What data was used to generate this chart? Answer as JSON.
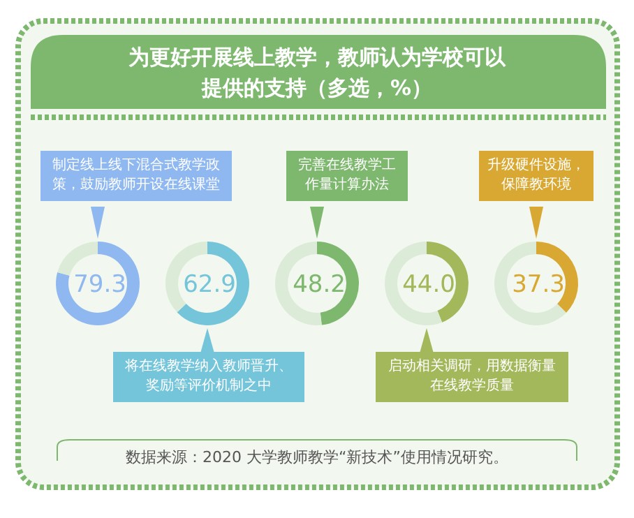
{
  "chart_data": [
    {
      "type": "other",
      "title": "为更好开展线上教学，教师认为学校可以提供的支持（多选，%）",
      "annotations": [
        "数据来源：2020 大学教师教学“新技术”使用情况研究。"
      ]
    },
    {
      "type": "donut",
      "categories": [
        "制定线上线下混合式教学政策，鼓励教师开设在线课堂",
        null
      ],
      "values": [
        79.3,
        20.7
      ],
      "colors": [
        "#8fb8f0",
        "#dcebd8"
      ],
      "value_labels": [
        "79.3",
        null
      ]
    },
    {
      "type": "donut",
      "categories": [
        "将在线教学纳入教师晋升、奖励等评价机制之中",
        null
      ],
      "values": [
        62.9,
        37.1
      ],
      "colors": [
        "#74c5da",
        "#dcebd8"
      ],
      "value_labels": [
        "62.9",
        null
      ]
    },
    {
      "type": "donut",
      "categories": [
        "完善在线教学工作量计算办法",
        null
      ],
      "values": [
        48.2,
        51.8
      ],
      "colors": [
        "#7db86e",
        "#dcebd8"
      ],
      "value_labels": [
        "48.2",
        null
      ]
    },
    {
      "type": "donut",
      "categories": [
        "启动相关调研，用数据衡量在线教学质量",
        null
      ],
      "values": [
        44.0,
        56.0
      ],
      "colors": [
        "#a3b85a",
        "#dcebd8"
      ],
      "value_labels": [
        "44.0",
        null
      ]
    },
    {
      "type": "donut",
      "categories": [
        "升级硬件设施，保障教环境",
        null
      ],
      "values": [
        37.3,
        62.7
      ],
      "colors": [
        "#d9a832",
        "#dcebd8"
      ],
      "value_labels": [
        "37.3",
        null
      ]
    }
  ]
}
